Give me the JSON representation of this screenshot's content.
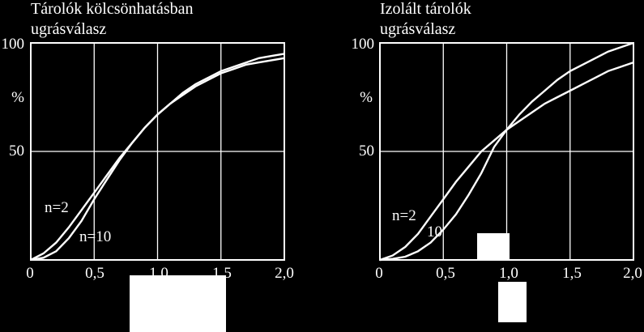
{
  "colors": {
    "background": "#000000",
    "foreground": "#ffffff"
  },
  "chart_data": [
    {
      "type": "line",
      "title": "Tárolók kölcsönhatásban",
      "subtitle": "ugrásválasz",
      "ylabel": "%",
      "origin_label": "0",
      "xlim": [
        0,
        2.0
      ],
      "ylim": [
        0,
        100
      ],
      "grid": true,
      "xtick_values": [
        0.5,
        1.0,
        1.5,
        2.0
      ],
      "xtick_labels": [
        "0,5",
        "1,0",
        "1,5",
        "2,0"
      ],
      "ytick_values": [
        50,
        100
      ],
      "ytick_labels": [
        "50",
        "100"
      ],
      "series": [
        {
          "name": "n=2",
          "x": [
            0,
            0.1,
            0.2,
            0.3,
            0.4,
            0.5,
            0.6,
            0.7,
            0.8,
            0.9,
            1.0,
            1.1,
            1.2,
            1.3,
            1.4,
            1.5,
            1.6,
            1.7,
            1.8,
            1.9,
            2.0
          ],
          "y": [
            0,
            3,
            8,
            15,
            23,
            31,
            39,
            47,
            54,
            61,
            67,
            72,
            77,
            81,
            84,
            87,
            89,
            91,
            93,
            94,
            95
          ]
        },
        {
          "name": "n=10",
          "x": [
            0,
            0.1,
            0.2,
            0.3,
            0.4,
            0.5,
            0.6,
            0.7,
            0.8,
            0.9,
            1.0,
            1.1,
            1.2,
            1.3,
            1.4,
            1.5,
            1.6,
            1.7,
            1.8,
            1.9,
            2.0
          ],
          "y": [
            0,
            1,
            4,
            10,
            18,
            28,
            37,
            46,
            54,
            61,
            67,
            72,
            76,
            80,
            83,
            86,
            88,
            90,
            91,
            92,
            93
          ]
        }
      ],
      "annotations": [
        "n=2",
        "n=10"
      ]
    },
    {
      "type": "line",
      "title": "Izolált tárolók",
      "subtitle": "ugrásválasz",
      "ylabel": "%",
      "origin_label": "0",
      "xlim": [
        0,
        2.0
      ],
      "ylim": [
        0,
        100
      ],
      "grid": true,
      "xtick_values": [
        0.5,
        1.0,
        1.5,
        2.0
      ],
      "xtick_labels": [
        "0,5",
        "1,0",
        "1,5",
        "2,0"
      ],
      "ytick_values": [
        50,
        100
      ],
      "ytick_labels": [
        "50",
        "100"
      ],
      "series": [
        {
          "name": "n=2",
          "x": [
            0,
            0.1,
            0.2,
            0.3,
            0.4,
            0.5,
            0.6,
            0.7,
            0.8,
            0.9,
            1.0,
            1.1,
            1.2,
            1.3,
            1.4,
            1.5,
            1.6,
            1.7,
            1.8,
            1.9,
            2.0
          ],
          "y": [
            0,
            2,
            6,
            12,
            20,
            28,
            36,
            43,
            50,
            55,
            60,
            64,
            68,
            72,
            75,
            78,
            81,
            84,
            87,
            89,
            91
          ]
        },
        {
          "name": "10",
          "x": [
            0,
            0.1,
            0.2,
            0.3,
            0.4,
            0.5,
            0.6,
            0.7,
            0.8,
            0.9,
            1.0,
            1.1,
            1.2,
            1.3,
            1.4,
            1.5,
            1.6,
            1.7,
            1.8,
            1.9,
            2.0
          ],
          "y": [
            0,
            0.5,
            1.5,
            4,
            8,
            14,
            21,
            30,
            40,
            52,
            60,
            67,
            73,
            78,
            83,
            87,
            90,
            93,
            96,
            98,
            100
          ]
        }
      ],
      "annotations": [
        "n=2",
        "10"
      ]
    }
  ]
}
